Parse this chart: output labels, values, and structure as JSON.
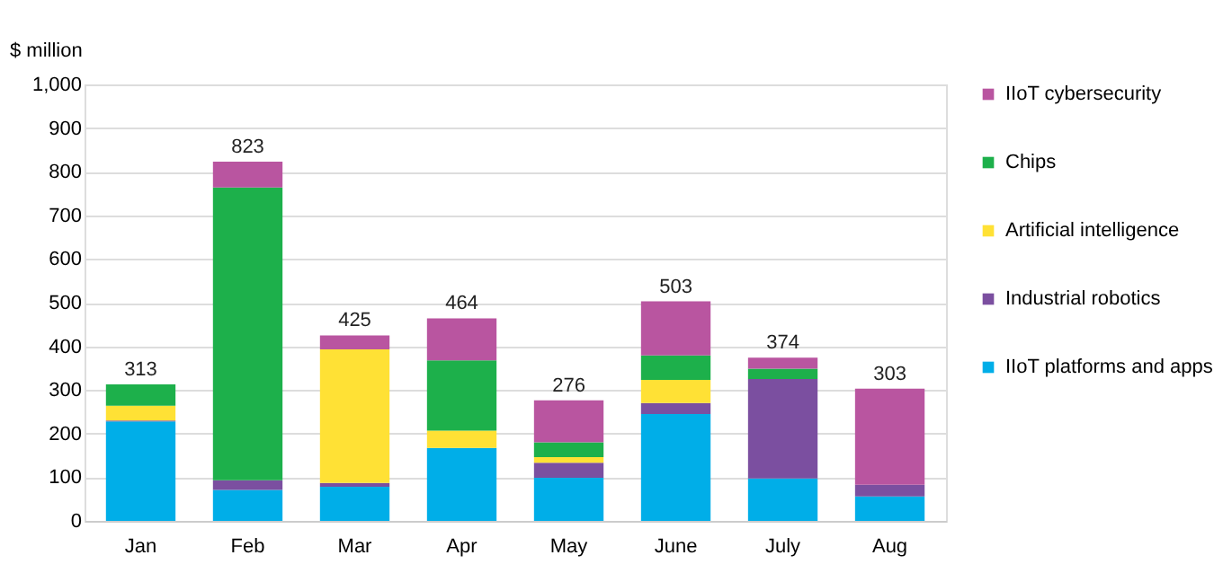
{
  "chart_data": {
    "type": "bar",
    "stacked": true,
    "ylabel": "$ million",
    "categories": [
      "Jan",
      "Feb",
      "Mar",
      "Apr",
      "May",
      "June",
      "July",
      "Aug"
    ],
    "series": [
      {
        "name": "IIoT platforms and apps",
        "color": "#00aee8",
        "values": [
          228,
          71,
          78,
          167,
          99,
          245,
          97,
          56
        ]
      },
      {
        "name": "Industrial robotics",
        "color": "#7b4fa0",
        "values": [
          2,
          22,
          9,
          0,
          34,
          25,
          228,
          27
        ]
      },
      {
        "name": "Artificial intelligence",
        "color": "#ffe135",
        "values": [
          34,
          0,
          306,
          40,
          13,
          53,
          0,
          0
        ]
      },
      {
        "name": "Chips",
        "color": "#1db04b",
        "values": [
          49,
          671,
          0,
          161,
          34,
          56,
          24,
          0
        ]
      },
      {
        "name": "IIoT cybersecurity",
        "color": "#b955a0",
        "values": [
          0,
          59,
          32,
          96,
          96,
          124,
          25,
          220
        ]
      }
    ],
    "totals": [
      "313",
      "823",
      "425",
      "464",
      "276",
      "503",
      "374",
      "303"
    ],
    "ylim": [
      0,
      1000
    ],
    "yticks": [
      0,
      100,
      200,
      300,
      400,
      500,
      600,
      700,
      800,
      900,
      {
        "value": 1000,
        "label": "1,000"
      }
    ],
    "grid": "y",
    "legend": "right"
  }
}
